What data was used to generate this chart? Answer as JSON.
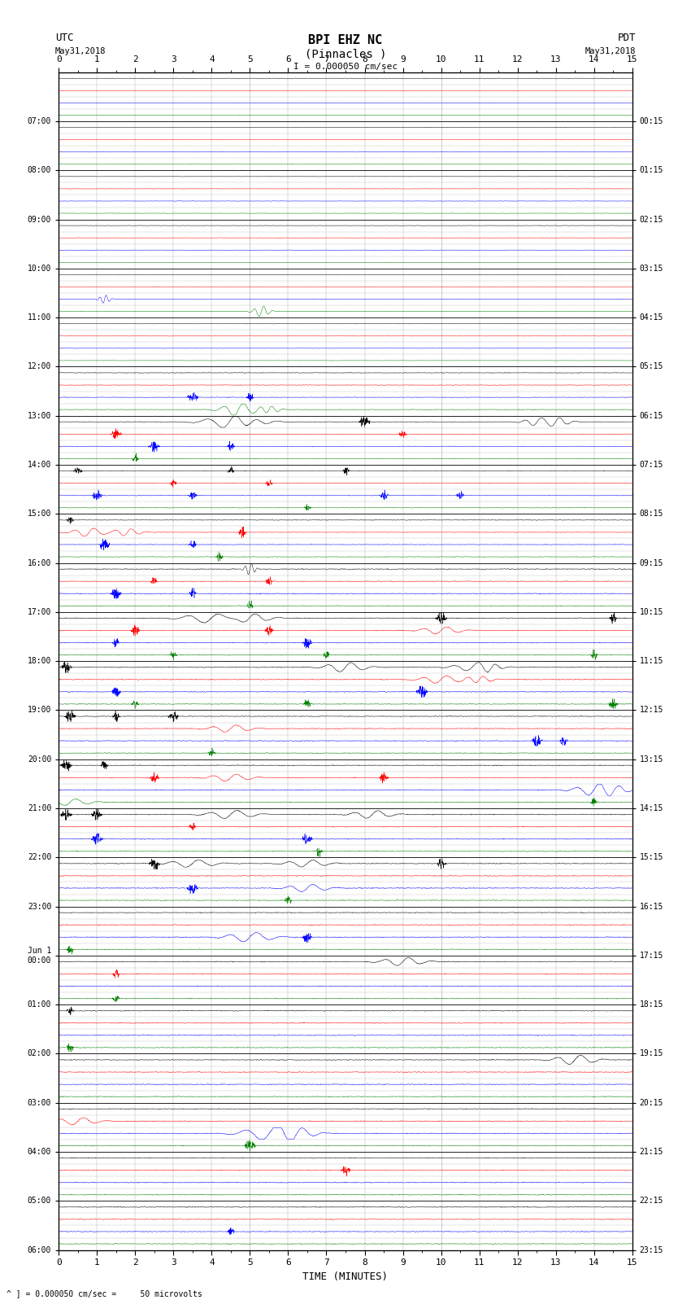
{
  "title_line1": "BPI EHZ NC",
  "title_line2": "(Pinnacles )",
  "scale_label": "I = 0.000050 cm/sec",
  "xlabel": "TIME (MINUTES)",
  "bottom_note": "^ ] = 0.000050 cm/sec =     50 microvolts",
  "utc_times": [
    "07:00",
    "08:00",
    "09:00",
    "10:00",
    "11:00",
    "12:00",
    "13:00",
    "14:00",
    "15:00",
    "16:00",
    "17:00",
    "18:00",
    "19:00",
    "20:00",
    "21:00",
    "22:00",
    "23:00",
    "Jun 1\n00:00",
    "01:00",
    "02:00",
    "03:00",
    "04:00",
    "05:00",
    "06:00"
  ],
  "pdt_times": [
    "00:15",
    "01:15",
    "02:15",
    "03:15",
    "04:15",
    "05:15",
    "06:15",
    "07:15",
    "08:15",
    "09:15",
    "10:15",
    "11:15",
    "12:15",
    "13:15",
    "14:15",
    "15:15",
    "16:15",
    "17:15",
    "18:15",
    "19:15",
    "20:15",
    "21:15",
    "22:15",
    "23:15"
  ],
  "n_hours": 24,
  "traces_per_hour": 4,
  "x_ticks": [
    0,
    1,
    2,
    3,
    4,
    5,
    6,
    7,
    8,
    9,
    10,
    11,
    12,
    13,
    14,
    15
  ],
  "bg_color": "#ffffff",
  "grid_major_color": "#888888",
  "grid_minor_color": "#bbbbbb",
  "colors_cycle": [
    "black",
    "red",
    "blue",
    "green"
  ],
  "base_noise_amp": 0.012,
  "seed": 42
}
